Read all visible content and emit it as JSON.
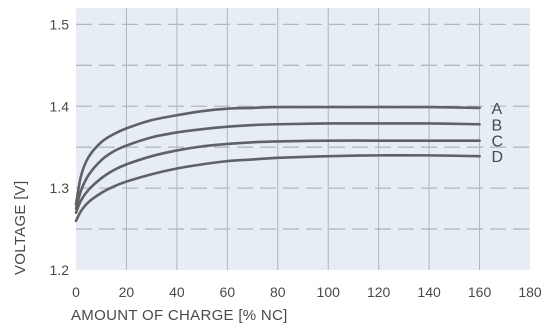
{
  "chart_data": {
    "type": "line",
    "xlabel": "AMOUNT OF CHARGE [% NC]",
    "ylabel": "VOLTAGE [V]",
    "xlim": [
      0,
      180
    ],
    "ylim": [
      1.2,
      1.52
    ],
    "xticks": [
      "0",
      "20",
      "40",
      "60",
      "80",
      "100",
      "120",
      "140",
      "160",
      "180"
    ],
    "yticks": [
      "1.2",
      "1.3",
      "1.4",
      "1.5"
    ],
    "grid": {
      "vertical": "solid",
      "horizontal": "dashed"
    },
    "series": [
      {
        "name": "A",
        "x": [
          0,
          2,
          5,
          10,
          15,
          20,
          30,
          40,
          50,
          60,
          70,
          80,
          100,
          120,
          140,
          160
        ],
        "y": [
          1.28,
          1.315,
          1.338,
          1.356,
          1.366,
          1.373,
          1.383,
          1.389,
          1.394,
          1.397,
          1.398,
          1.399,
          1.399,
          1.399,
          1.399,
          1.398
        ]
      },
      {
        "name": "B",
        "x": [
          0,
          2,
          5,
          10,
          15,
          20,
          30,
          40,
          50,
          60,
          70,
          80,
          100,
          120,
          140,
          160
        ],
        "y": [
          1.275,
          1.297,
          1.316,
          1.334,
          1.345,
          1.352,
          1.362,
          1.368,
          1.372,
          1.375,
          1.377,
          1.378,
          1.379,
          1.379,
          1.379,
          1.378
        ]
      },
      {
        "name": "C",
        "x": [
          0,
          2,
          5,
          10,
          15,
          20,
          30,
          40,
          50,
          60,
          70,
          80,
          100,
          120,
          140,
          160
        ],
        "y": [
          1.27,
          1.285,
          1.298,
          1.312,
          1.322,
          1.329,
          1.339,
          1.346,
          1.351,
          1.354,
          1.356,
          1.357,
          1.358,
          1.358,
          1.358,
          1.358
        ]
      },
      {
        "name": "D",
        "x": [
          0,
          2,
          5,
          10,
          15,
          20,
          30,
          40,
          50,
          60,
          70,
          80,
          100,
          120,
          140,
          160
        ],
        "y": [
          1.26,
          1.272,
          1.283,
          1.294,
          1.302,
          1.308,
          1.317,
          1.324,
          1.329,
          1.333,
          1.335,
          1.337,
          1.339,
          1.34,
          1.34,
          1.339
        ]
      }
    ],
    "colors": {
      "plot_background": "#e6edf4",
      "line": "#5f6166",
      "grid_vertical": "#a9b6c4",
      "grid_horizontal": "#b3b9c0",
      "text": "#4a4a4a"
    }
  }
}
